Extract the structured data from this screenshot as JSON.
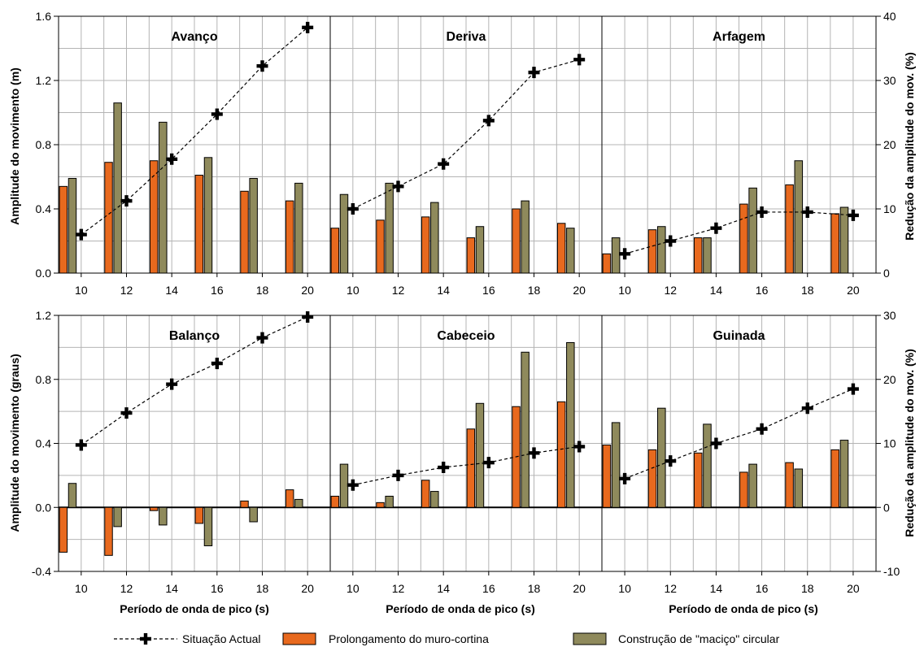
{
  "chart_data": {
    "type": "bar",
    "categories": [
      "10",
      "12",
      "14",
      "16",
      "18",
      "20"
    ],
    "xlabel": "Período de onda de pico (s)",
    "left_ylabel_top": "Amplitude do movimento  (m)",
    "left_ylabel_bottom": "Amplitude do movimento  (graus)",
    "right_ylabel": "Redução da amplitude do mov. (%)",
    "top_left_axis": {
      "ylim": [
        0,
        1.6
      ],
      "ticks": [
        "0.0",
        "0.4",
        "0.8",
        "1.2",
        "1.6"
      ]
    },
    "top_right_axis": {
      "ylim": [
        0,
        40
      ],
      "ticks": [
        "0",
        "10",
        "20",
        "30",
        "40"
      ]
    },
    "bottom_left_axis": {
      "ylim": [
        -0.4,
        1.2
      ],
      "ticks": [
        "-0.4",
        "0.0",
        "0.4",
        "0.8",
        "1.2"
      ]
    },
    "bottom_right_axis": {
      "ylim": [
        -10,
        30
      ],
      "ticks": [
        "-10",
        "0",
        "10",
        "20",
        "30"
      ]
    },
    "grid": true,
    "legend_placement": "bottom",
    "legend": [
      {
        "label": "Situação Actual",
        "kind": "line",
        "color": "#000000"
      },
      {
        "label": "Prolongamento do muro-cortina",
        "kind": "bar",
        "color": "#E8691E"
      },
      {
        "label": "Construção de \"maciço\" circular",
        "kind": "bar",
        "color": "#8F8A5C"
      }
    ],
    "panels": [
      {
        "title": "Avanço",
        "row": 0,
        "col": 0,
        "series": [
          {
            "name": "Situação Actual",
            "values": [
              0.24,
              0.45,
              0.71,
              0.99,
              1.29,
              1.53
            ]
          },
          {
            "name": "Prolongamento do muro-cortina",
            "values": [
              0.54,
              0.69,
              0.7,
              0.61,
              0.51,
              0.45
            ]
          },
          {
            "name": "Construção de \"maciço\" circular",
            "values": [
              0.59,
              1.06,
              0.94,
              0.72,
              0.59,
              0.56
            ]
          }
        ]
      },
      {
        "title": "Deriva",
        "row": 0,
        "col": 1,
        "series": [
          {
            "name": "Situação Actual",
            "values": [
              0.4,
              0.54,
              0.68,
              0.95,
              1.25,
              1.33
            ]
          },
          {
            "name": "Prolongamento do muro-cortina",
            "values": [
              0.28,
              0.33,
              0.35,
              0.22,
              0.4,
              0.31
            ]
          },
          {
            "name": "Construção de \"maciço\" circular",
            "values": [
              0.49,
              0.56,
              0.44,
              0.29,
              0.45,
              0.28
            ]
          }
        ]
      },
      {
        "title": "Arfagem",
        "row": 0,
        "col": 2,
        "series": [
          {
            "name": "Situação Actual",
            "values": [
              0.12,
              0.2,
              0.28,
              0.38,
              0.38,
              0.36
            ]
          },
          {
            "name": "Prolongamento do muro-cortina",
            "values": [
              0.12,
              0.27,
              0.22,
              0.43,
              0.55,
              0.37
            ]
          },
          {
            "name": "Construção de \"maciço\" circular",
            "values": [
              0.22,
              0.29,
              0.22,
              0.53,
              0.7,
              0.41
            ]
          }
        ]
      },
      {
        "title": "Balanço",
        "row": 1,
        "col": 0,
        "series": [
          {
            "name": "Situação Actual",
            "values": [
              0.39,
              0.59,
              0.77,
              0.9,
              1.06,
              1.19
            ]
          },
          {
            "name": "Prolongamento do muro-cortina",
            "values": [
              -0.28,
              -0.3,
              -0.02,
              -0.1,
              0.04,
              0.11
            ]
          },
          {
            "name": "Construção de \"maciço\" circular",
            "values": [
              0.15,
              -0.12,
              -0.11,
              -0.24,
              -0.09,
              0.05
            ]
          }
        ]
      },
      {
        "title": "Cabeceio",
        "row": 1,
        "col": 1,
        "series": [
          {
            "name": "Situação Actual",
            "values": [
              0.14,
              0.2,
              0.25,
              0.28,
              0.34,
              0.38
            ]
          },
          {
            "name": "Prolongamento do muro-cortina",
            "values": [
              0.07,
              0.03,
              0.17,
              0.49,
              0.63,
              0.66
            ]
          },
          {
            "name": "Construção de \"maciço\" circular",
            "values": [
              0.27,
              0.07,
              0.1,
              0.65,
              0.97,
              1.03
            ]
          }
        ]
      },
      {
        "title": "Guinada",
        "row": 1,
        "col": 2,
        "series": [
          {
            "name": "Situação Actual",
            "values": [
              0.18,
              0.29,
              0.4,
              0.49,
              0.62,
              0.74
            ]
          },
          {
            "name": "Prolongamento do muro-cortina",
            "values": [
              0.39,
              0.36,
              0.34,
              0.22,
              0.28,
              0.36
            ]
          },
          {
            "name": "Construção de \"maciço\" circular",
            "values": [
              0.53,
              0.62,
              0.52,
              0.27,
              0.24,
              0.42
            ]
          }
        ]
      }
    ]
  }
}
